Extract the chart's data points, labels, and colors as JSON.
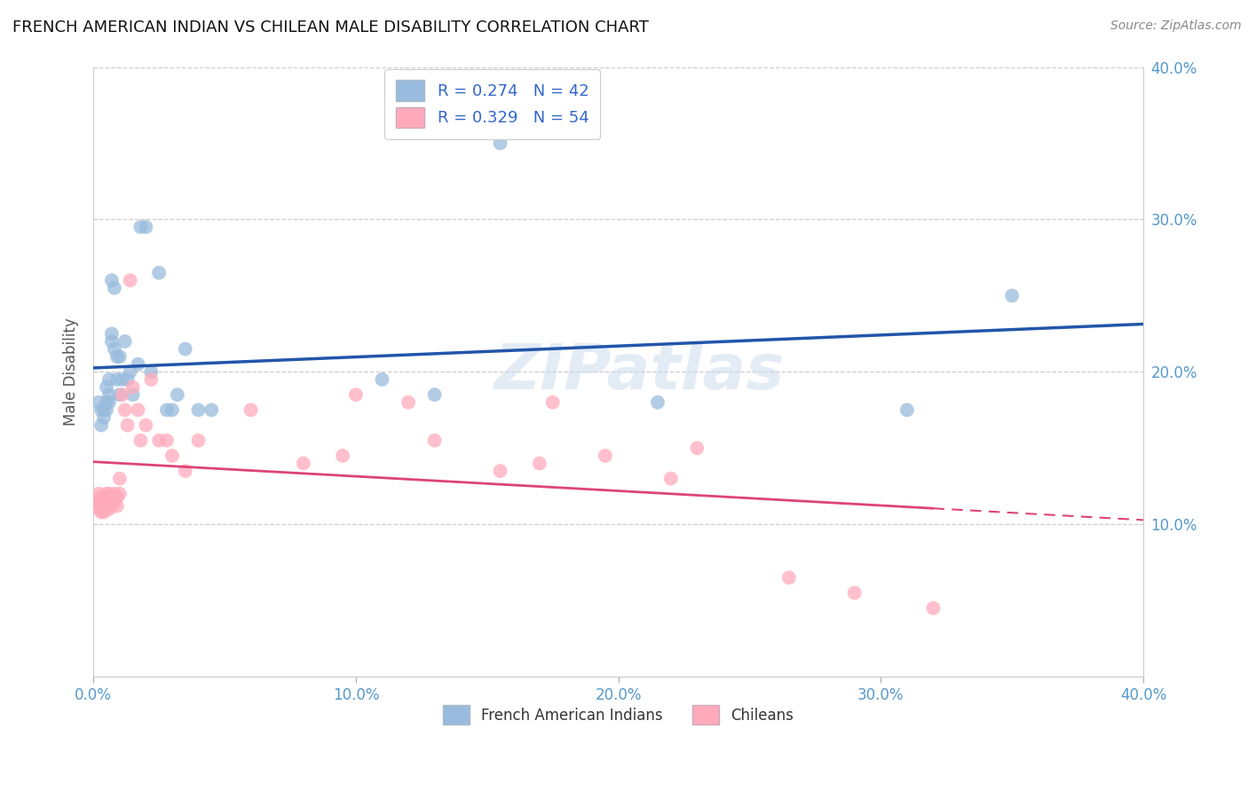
{
  "title": "FRENCH AMERICAN INDIAN VS CHILEAN MALE DISABILITY CORRELATION CHART",
  "source": "Source: ZipAtlas.com",
  "ylabel": "Male Disability",
  "xlim": [
    0.0,
    0.4
  ],
  "ylim": [
    0.0,
    0.4
  ],
  "xtick_vals": [
    0.0,
    0.1,
    0.2,
    0.3,
    0.4
  ],
  "ytick_vals": [
    0.1,
    0.2,
    0.3,
    0.4
  ],
  "background_color": "#ffffff",
  "grid_color": "#cccccc",
  "watermark": "ZIPatlas",
  "color_blue": "#99bbdd",
  "color_pink": "#ffaabb",
  "line_blue": "#2255aa",
  "line_pink": "#dd4477",
  "legend_label1": "French American Indians",
  "legend_label2": "Chileans",
  "R1": 0.274,
  "N1": 42,
  "R2": 0.329,
  "N2": 54,
  "blue_x": [
    0.002,
    0.003,
    0.003,
    0.004,
    0.004,
    0.005,
    0.005,
    0.005,
    0.006,
    0.006,
    0.006,
    0.007,
    0.007,
    0.007,
    0.008,
    0.008,
    0.009,
    0.009,
    0.01,
    0.01,
    0.011,
    0.012,
    0.013,
    0.014,
    0.015,
    0.017,
    0.018,
    0.02,
    0.022,
    0.025,
    0.028,
    0.03,
    0.032,
    0.035,
    0.04,
    0.045,
    0.11,
    0.13,
    0.155,
    0.215,
    0.31,
    0.35
  ],
  "blue_y": [
    0.18,
    0.175,
    0.165,
    0.175,
    0.17,
    0.19,
    0.18,
    0.175,
    0.195,
    0.185,
    0.18,
    0.225,
    0.22,
    0.26,
    0.255,
    0.215,
    0.21,
    0.195,
    0.21,
    0.185,
    0.195,
    0.22,
    0.195,
    0.2,
    0.185,
    0.205,
    0.295,
    0.295,
    0.2,
    0.265,
    0.175,
    0.175,
    0.185,
    0.215,
    0.175,
    0.175,
    0.195,
    0.185,
    0.35,
    0.18,
    0.175,
    0.25
  ],
  "pink_x": [
    0.001,
    0.002,
    0.002,
    0.002,
    0.003,
    0.003,
    0.003,
    0.003,
    0.004,
    0.004,
    0.004,
    0.005,
    0.005,
    0.005,
    0.006,
    0.006,
    0.006,
    0.007,
    0.007,
    0.008,
    0.008,
    0.009,
    0.009,
    0.01,
    0.01,
    0.011,
    0.012,
    0.013,
    0.014,
    0.015,
    0.017,
    0.018,
    0.02,
    0.022,
    0.025,
    0.028,
    0.03,
    0.035,
    0.04,
    0.06,
    0.08,
    0.095,
    0.1,
    0.12,
    0.13,
    0.155,
    0.17,
    0.175,
    0.195,
    0.22,
    0.23,
    0.265,
    0.29,
    0.32
  ],
  "pink_y": [
    0.115,
    0.115,
    0.12,
    0.11,
    0.118,
    0.115,
    0.112,
    0.108,
    0.118,
    0.115,
    0.108,
    0.12,
    0.115,
    0.112,
    0.12,
    0.114,
    0.11,
    0.118,
    0.112,
    0.12,
    0.115,
    0.118,
    0.112,
    0.13,
    0.12,
    0.185,
    0.175,
    0.165,
    0.26,
    0.19,
    0.175,
    0.155,
    0.165,
    0.195,
    0.155,
    0.155,
    0.145,
    0.135,
    0.155,
    0.175,
    0.14,
    0.145,
    0.185,
    0.18,
    0.155,
    0.135,
    0.14,
    0.18,
    0.145,
    0.13,
    0.15,
    0.065,
    0.055,
    0.045
  ]
}
